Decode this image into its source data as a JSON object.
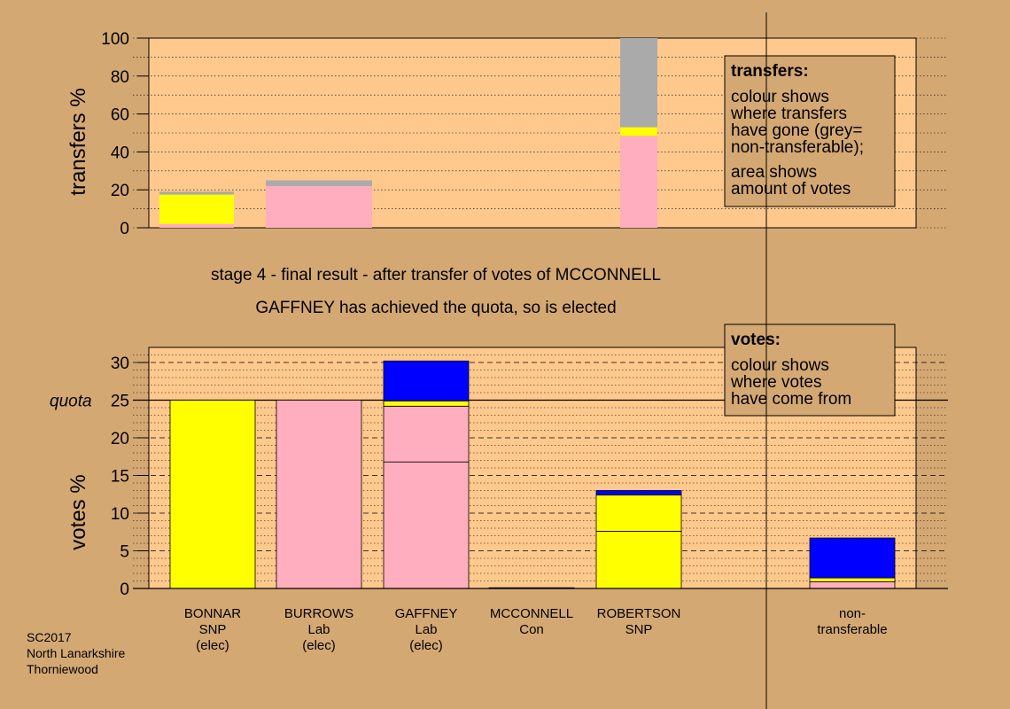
{
  "chart_data": [
    {
      "type": "bar",
      "stacked": true,
      "ylabel": "transfers %",
      "ylim": [
        0,
        100
      ],
      "yticks": [
        0,
        20,
        40,
        60,
        80,
        100
      ],
      "categories": [
        "BONNAR",
        "BURROWS",
        "GAFFNEY",
        "MCCONNELL",
        "ROBERTSON",
        "non-transferable"
      ],
      "segment_colors": [
        "#ffaebf",
        "#ffff00",
        "#aaaaaa"
      ],
      "bars": [
        {
          "category": "BONNAR",
          "width_share": 0.7,
          "segments": [
            {
              "color": "#ffaebf",
              "from": 0,
              "to": 2
            },
            {
              "color": "#ffff00",
              "from": 2,
              "to": 17.5
            },
            {
              "color": "#aaaaaa",
              "from": 17.5,
              "to": 19
            }
          ]
        },
        {
          "category": "BURROWS",
          "width_share": 1.0,
          "segments": [
            {
              "color": "#ffaebf",
              "from": 0,
              "to": 22
            },
            {
              "color": "#aaaaaa",
              "from": 22,
              "to": 25
            }
          ]
        },
        {
          "category": "ROBERTSON",
          "width_share": 0.35,
          "segments": [
            {
              "color": "#ffaebf",
              "from": 0,
              "to": 48.5
            },
            {
              "color": "#ffff00",
              "from": 48.5,
              "to": 53
            },
            {
              "color": "#aaaaaa",
              "from": 53,
              "to": 100
            }
          ]
        }
      ],
      "legend_box": {
        "title": "transfers:",
        "lines1": [
          "colour shows",
          "where transfers",
          "have gone (grey=",
          "non-transferable);"
        ],
        "lines2": [
          "area shows",
          "amount of votes"
        ]
      }
    },
    {
      "type": "bar",
      "stacked": true,
      "ylabel": "votes %",
      "ylim": [
        0,
        32
      ],
      "yticks": [
        0,
        5,
        10,
        15,
        20,
        25,
        30
      ],
      "quota": 25,
      "quota_label": "quota",
      "categories": [
        "BONNAR",
        "BURROWS",
        "GAFFNEY",
        "MCCONNELL",
        "ROBERTSON",
        "non-transferable"
      ],
      "category_labels": [
        [
          "BONNAR",
          "SNP",
          "(elec)"
        ],
        [
          "BURROWS",
          "Lab",
          "(elec)"
        ],
        [
          "GAFFNEY",
          "Lab",
          "(elec)"
        ],
        [
          "MCCONNELL",
          "Con"
        ],
        [
          "ROBERTSON",
          "SNP"
        ],
        [
          "non-",
          "transferable"
        ]
      ],
      "series_colors": {
        "snp": "#ffff00",
        "lab": "#ffaebf",
        "con": "#0000ff"
      },
      "bars": [
        {
          "category": "BONNAR",
          "segments": [
            {
              "color": "#ffff00",
              "from": 0,
              "to": 25
            }
          ]
        },
        {
          "category": "BURROWS",
          "segments": [
            {
              "color": "#ffaebf",
              "from": 0,
              "to": 25
            }
          ]
        },
        {
          "category": "GAFFNEY",
          "segments": [
            {
              "color": "#ffaebf",
              "from": 0,
              "to": 16.8
            },
            {
              "color": "#ffaebf",
              "from": 16.8,
              "to": 24.2
            },
            {
              "color": "#ffff00",
              "from": 24.2,
              "to": 24.9
            },
            {
              "color": "#0000ff",
              "from": 24.9,
              "to": 30.2
            }
          ]
        },
        {
          "category": "MCCONNELL",
          "segments": [
            {
              "color": "#0000ff",
              "from": 0,
              "to": 0.1
            }
          ]
        },
        {
          "category": "ROBERTSON",
          "segments": [
            {
              "color": "#ffff00",
              "from": 0,
              "to": 7.6
            },
            {
              "color": "#ffff00",
              "from": 7.6,
              "to": 12.4
            },
            {
              "color": "#0000ff",
              "from": 12.4,
              "to": 13
            }
          ]
        },
        {
          "category": "non-transferable",
          "segments": [
            {
              "color": "#ffaebf",
              "from": 0,
              "to": 0.9
            },
            {
              "color": "#ffff00",
              "from": 0.9,
              "to": 1.4
            },
            {
              "color": "#0000ff",
              "from": 1.4,
              "to": 6.7
            }
          ]
        }
      ],
      "legend_box": {
        "title": "votes:",
        "lines1": [
          "colour shows",
          "where votes",
          "have come from"
        ]
      }
    }
  ],
  "captions": {
    "stage": "stage 4 - final result - after transfer of votes of MCCONNELL",
    "result": "GAFFNEY has achieved the quota, so is elected"
  },
  "footer": [
    "SC2017",
    "North Lanarkshire",
    "Thorniewood"
  ]
}
